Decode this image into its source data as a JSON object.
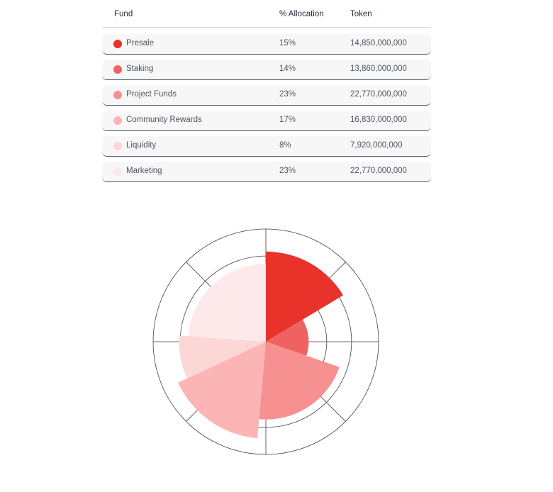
{
  "table": {
    "headers": {
      "fund": "Fund",
      "allocation": "% Allocation",
      "token": "Token"
    },
    "rows": [
      {
        "name": "Presale",
        "allocation": "15%",
        "token": "14,850,000,000",
        "color": "#e8322a"
      },
      {
        "name": "Staking",
        "allocation": "14%",
        "token": "13,860,000,000",
        "color": "#ef6262"
      },
      {
        "name": "Project Funds",
        "allocation": "23%",
        "token": "22,770,000,000",
        "color": "#f79090"
      },
      {
        "name": "Community Rewards",
        "allocation": "17%",
        "token": "16,830,000,000",
        "color": "#fbb5b5"
      },
      {
        "name": "Liquidity",
        "allocation": "8%",
        "token": "7,920,000,000",
        "color": "#fdd6d6"
      },
      {
        "name": "Marketing",
        "allocation": "23%",
        "token": "22,770,000,000",
        "color": "#fde9e9"
      }
    ]
  },
  "chart_data": {
    "type": "pie",
    "variant": "polar-area",
    "categories": [
      "Presale",
      "Staking",
      "Project Funds",
      "Community Rewards",
      "Liquidity",
      "Marketing"
    ],
    "angles_deg": [
      59,
      50,
      76,
      60,
      29,
      86
    ],
    "radius_fraction": [
      0.8,
      0.38,
      0.69,
      0.86,
      0.77,
      0.69
    ],
    "colors": [
      "#e8322a",
      "#ef6262",
      "#f79090",
      "#fbb5b5",
      "#fdd6d6",
      "#fde9e9"
    ],
    "grid": true,
    "grid_rings": 3,
    "grid_spokes": 8
  }
}
